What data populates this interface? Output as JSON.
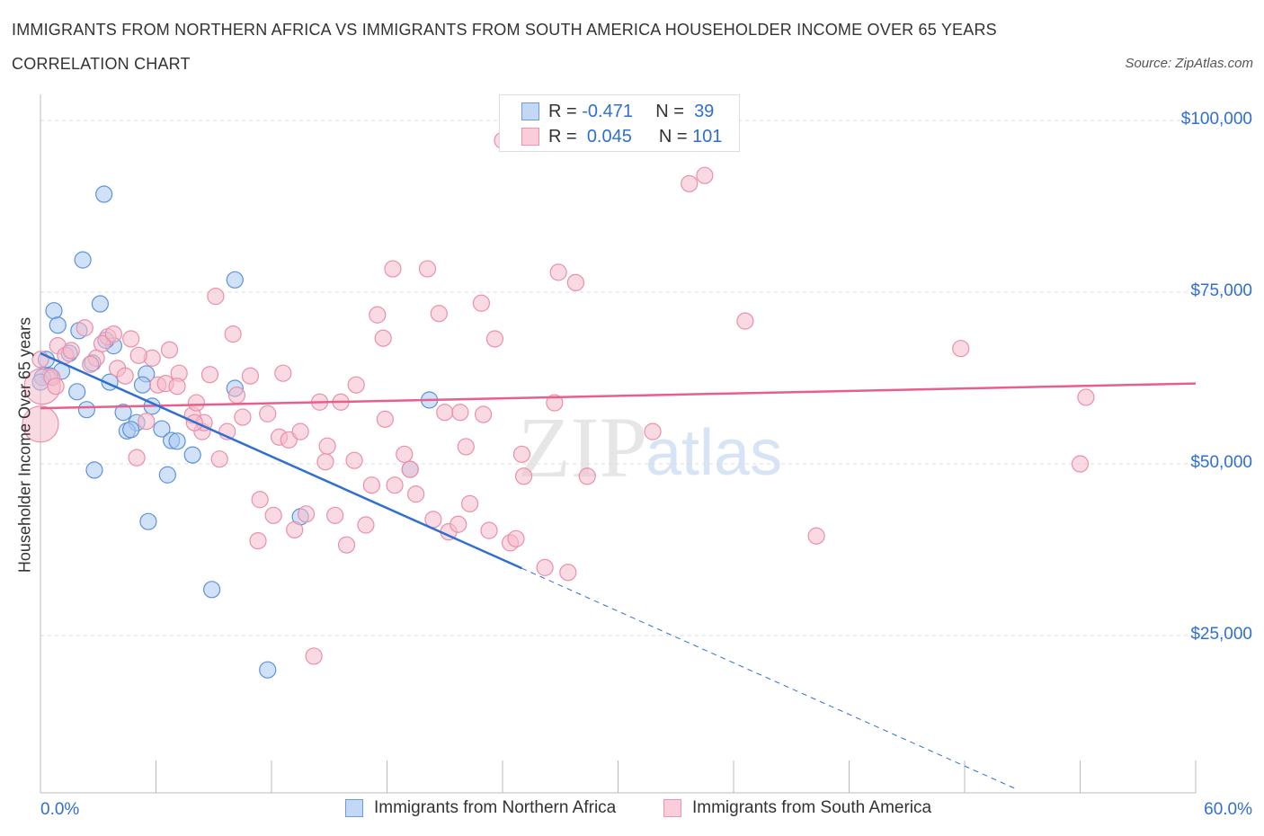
{
  "title_line1": "IMMIGRANTS FROM NORTHERN AFRICA VS IMMIGRANTS FROM SOUTH AMERICA HOUSEHOLDER INCOME OVER 65 YEARS",
  "title_line2": "CORRELATION CHART",
  "source": "Source: ZipAtlas.com",
  "watermark": "ZIPatlas",
  "legend": {
    "blue": {
      "r_label": "R =",
      "r": "-0.471",
      "n_label": "N =",
      "n": "39"
    },
    "pink": {
      "r_label": "R =",
      "r": "0.045",
      "n_label": "N =",
      "n": "101"
    }
  },
  "colors": {
    "blue": "#2f6fd0",
    "pink": "#e8608a",
    "blue_fill": "#a9c9f2",
    "pink_fill": "#f6bccb"
  },
  "chart_data": {
    "type": "scatter",
    "title": "IMMIGRANTS FROM NORTHERN AFRICA VS IMMIGRANTS FROM SOUTH AMERICA HOUSEHOLDER INCOME OVER 65 YEARS CORRELATION CHART",
    "xlabel": "",
    "ylabel": "Householder Income Over 65 years",
    "xlim": [
      0,
      60
    ],
    "ylim": [
      2000,
      104000
    ],
    "x_tick_labels": [
      "0.0%",
      "60.0%"
    ],
    "y_tick_labels": [
      "$100,000",
      "$75,000",
      "$50,000",
      "$25,000"
    ],
    "y_ticks": [
      100000,
      75000,
      50000,
      25000
    ],
    "grid": true,
    "legend_placement": "bottom",
    "series": [
      {
        "name": "Immigrants from Northern Africa",
        "color": "blue",
        "trend": {
          "x0": 0,
          "y0": 66100,
          "x1": 25,
          "y1": 34800,
          "dash_to_x": 50.6,
          "dash_to_y": 2750
        },
        "points": [
          [
            3.3,
            89270
          ],
          [
            2.2,
            79700
          ],
          [
            10.1,
            76800
          ],
          [
            3.1,
            73300
          ],
          [
            0.7,
            72300
          ],
          [
            0.9,
            70200
          ],
          [
            3.8,
            67200
          ],
          [
            2.0,
            69400
          ],
          [
            1.5,
            66100
          ],
          [
            0.3,
            65200
          ],
          [
            2.7,
            64700
          ],
          [
            1.1,
            63500
          ],
          [
            0.5,
            62800
          ],
          [
            5.5,
            63100
          ],
          [
            3.6,
            61900
          ],
          [
            5.3,
            61500
          ],
          [
            1.9,
            60500
          ],
          [
            10.1,
            61000
          ],
          [
            20.2,
            59300
          ],
          [
            5.8,
            58400
          ],
          [
            2.4,
            57900
          ],
          [
            4.3,
            57500
          ],
          [
            5.0,
            56000
          ],
          [
            6.3,
            55100
          ],
          [
            4.5,
            54800
          ],
          [
            4.7,
            55000
          ],
          [
            6.8,
            53400
          ],
          [
            7.1,
            53300
          ],
          [
            7.9,
            51300
          ],
          [
            2.8,
            49100
          ],
          [
            6.6,
            48400
          ],
          [
            19.2,
            49200
          ],
          [
            5.6,
            41600
          ],
          [
            13.5,
            42300
          ],
          [
            8.9,
            31700
          ],
          [
            11.8,
            20000
          ],
          [
            0.1,
            62600
          ],
          [
            0.0,
            61900
          ],
          [
            3.4,
            68000
          ]
        ]
      },
      {
        "name": "Immigrants from South America",
        "color": "pink",
        "trend": {
          "x0": 0,
          "y0": 58100,
          "x1": 60,
          "y1": 61700
        },
        "points": [
          [
            0,
            55800
          ],
          [
            0.1,
            61300
          ],
          [
            0.6,
            62600
          ],
          [
            0.9,
            67200
          ],
          [
            1.3,
            65800
          ],
          [
            1.6,
            66500
          ],
          [
            2.3,
            69800
          ],
          [
            2.9,
            65400
          ],
          [
            3.5,
            68500
          ],
          [
            3.2,
            67500
          ],
          [
            3.8,
            68900
          ],
          [
            4.7,
            68200
          ],
          [
            4.0,
            63900
          ],
          [
            4.4,
            62800
          ],
          [
            5.0,
            50900
          ],
          [
            5.5,
            56200
          ],
          [
            5.8,
            65400
          ],
          [
            6.1,
            61500
          ],
          [
            6.7,
            66600
          ],
          [
            6.5,
            61700
          ],
          [
            7.2,
            63200
          ],
          [
            7.1,
            61300
          ],
          [
            7.9,
            57100
          ],
          [
            8.1,
            58900
          ],
          [
            8.4,
            54700
          ],
          [
            8.5,
            56000
          ],
          [
            8.8,
            63000
          ],
          [
            9.1,
            74400
          ],
          [
            9.3,
            50700
          ],
          [
            9.7,
            54700
          ],
          [
            10.0,
            68900
          ],
          [
            10.2,
            60000
          ],
          [
            10.5,
            56800
          ],
          [
            10.9,
            62800
          ],
          [
            11.3,
            38800
          ],
          [
            11.4,
            44800
          ],
          [
            11.8,
            57300
          ],
          [
            12.1,
            42500
          ],
          [
            12.4,
            53900
          ],
          [
            12.6,
            63200
          ],
          [
            12.9,
            53500
          ],
          [
            13.2,
            40400
          ],
          [
            13.5,
            54700
          ],
          [
            13.8,
            42700
          ],
          [
            14.2,
            22000
          ],
          [
            14.5,
            59000
          ],
          [
            14.8,
            50300
          ],
          [
            14.9,
            52600
          ],
          [
            15.3,
            42500
          ],
          [
            15.6,
            59000
          ],
          [
            15.9,
            38200
          ],
          [
            16.3,
            50500
          ],
          [
            16.4,
            61500
          ],
          [
            16.9,
            41100
          ],
          [
            17.2,
            46900
          ],
          [
            17.5,
            71700
          ],
          [
            17.8,
            68300
          ],
          [
            17.9,
            56500
          ],
          [
            18.3,
            78400
          ],
          [
            18.4,
            46900
          ],
          [
            18.9,
            51400
          ],
          [
            19.2,
            49200
          ],
          [
            19.5,
            45600
          ],
          [
            20.1,
            78400
          ],
          [
            20.4,
            41900
          ],
          [
            20.7,
            71900
          ],
          [
            21.0,
            57500
          ],
          [
            21.2,
            40100
          ],
          [
            21.7,
            41200
          ],
          [
            21.8,
            57500
          ],
          [
            22.1,
            52500
          ],
          [
            22.3,
            44200
          ],
          [
            22.9,
            73400
          ],
          [
            23.0,
            57200
          ],
          [
            23.3,
            40300
          ],
          [
            23.6,
            68200
          ],
          [
            24.0,
            97100
          ],
          [
            24.4,
            38500
          ],
          [
            24.7,
            39100
          ],
          [
            25.0,
            51400
          ],
          [
            25.1,
            48200
          ],
          [
            26.2,
            34900
          ],
          [
            26.7,
            58900
          ],
          [
            26.9,
            77900
          ],
          [
            27.4,
            34200
          ],
          [
            27.8,
            76400
          ],
          [
            28.4,
            48200
          ],
          [
            31.8,
            54700
          ],
          [
            32.4,
            100000
          ],
          [
            33.7,
            90800
          ],
          [
            34.5,
            92000
          ],
          [
            36.6,
            70800
          ],
          [
            40.3,
            39500
          ],
          [
            47.8,
            66800
          ],
          [
            54.0,
            50000
          ],
          [
            54.3,
            59700
          ],
          [
            0,
            65200
          ],
          [
            0.8,
            61300
          ],
          [
            2.6,
            64500
          ],
          [
            5.1,
            65800
          ],
          [
            8.0,
            56000
          ]
        ]
      }
    ]
  }
}
